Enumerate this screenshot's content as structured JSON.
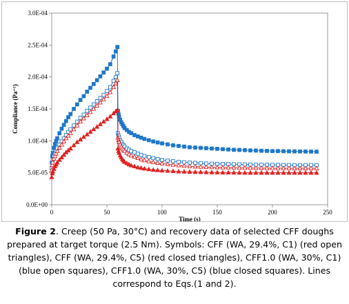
{
  "chart_data": {
    "type": "scatter",
    "title": "",
    "xlabel": "Time (s)",
    "ylabel": "Compliance (Pa⁻¹)",
    "xlim": [
      0,
      250
    ],
    "ylim": [
      0,
      0.0003
    ],
    "x_ticks": [
      0,
      50,
      100,
      150,
      200,
      250
    ],
    "x_tick_labels": [
      "0",
      "50",
      "100",
      "150",
      "200",
      "250"
    ],
    "y_ticks": [
      0,
      5e-05,
      0.0001,
      0.00015,
      0.0002,
      0.00025,
      0.0003
    ],
    "y_tick_labels": [
      "0.0E+00",
      "5.0E-05",
      "1.0E-04",
      "1.5E-04",
      "2.0E-04",
      "2.5E-04",
      "3.0E-04"
    ],
    "grid": false,
    "legend": "none",
    "series": [
      {
        "color": "#1f77c8",
        "marker": "square-closed",
        "x": [
          0,
          0.5,
          1,
          2,
          3,
          4,
          5,
          7,
          9,
          11,
          13,
          15,
          17,
          20,
          23,
          26,
          29,
          32,
          35,
          38,
          41,
          44,
          47,
          50,
          53,
          56,
          58,
          59.5,
          60,
          60.5,
          61,
          62,
          63,
          64,
          65,
          66,
          68,
          70,
          72,
          75,
          78,
          81,
          84,
          88,
          92,
          96,
          100,
          105,
          110,
          115,
          120,
          125,
          130,
          135,
          140,
          145,
          150,
          155,
          160,
          165,
          170,
          175,
          180,
          185,
          190,
          195,
          200,
          205,
          210,
          215,
          220,
          225,
          230,
          235,
          240
        ],
        "y": [
          6.6e-05,
          7.6e-05,
          8.1e-05,
          8.9e-05,
          9.5e-05,
          0.0001,
          0.000104,
          0.000112,
          0.000119,
          0.000125,
          0.000131,
          0.000137,
          0.000142,
          0.00015,
          0.000157,
          0.000164,
          0.00017,
          0.000177,
          0.000183,
          0.000189,
          0.000195,
          0.000201,
          0.000207,
          0.000213,
          0.00022,
          0.000232,
          0.00024,
          0.000247,
          0.000147,
          0.000142,
          0.000138,
          0.000133,
          0.000129,
          0.000126,
          0.000123,
          0.00012,
          0.000117,
          0.000114,
          0.000112,
          0.000109,
          0.000107,
          0.000105,
          0.000103,
          0.000101,
          9.9e-05,
          9.75e-05,
          9.6e-05,
          9.45e-05,
          9.3e-05,
          9.2e-05,
          9.1e-05,
          9e-05,
          8.95e-05,
          8.9e-05,
          8.85e-05,
          8.8e-05,
          8.75e-05,
          8.7e-05,
          8.65e-05,
          8.6e-05,
          8.58e-05,
          8.55e-05,
          8.5e-05,
          8.48e-05,
          8.45e-05,
          8.43e-05,
          8.4e-05,
          8.4e-05,
          8.38e-05,
          8.36e-05,
          8.35e-05,
          8.34e-05,
          8.33e-05,
          8.32e-05,
          8.3e-05
        ]
      },
      {
        "color": "#1f77c8",
        "marker": "square-open",
        "x": [
          0,
          0.5,
          1,
          2,
          3,
          4,
          5,
          7,
          9,
          11,
          13,
          15,
          17,
          20,
          23,
          26,
          29,
          32,
          35,
          38,
          41,
          44,
          47,
          50,
          53,
          56,
          58,
          59.5,
          60,
          60.5,
          61,
          62,
          63,
          64,
          65,
          66,
          68,
          70,
          72,
          75,
          78,
          81,
          84,
          88,
          92,
          96,
          100,
          105,
          110,
          115,
          120,
          125,
          130,
          135,
          140,
          145,
          150,
          155,
          160,
          165,
          170,
          175,
          180,
          185,
          190,
          195,
          200,
          205,
          210,
          215,
          220,
          225,
          230,
          235,
          240
        ],
        "y": [
          5.8e-05,
          6.6e-05,
          7e-05,
          7.6e-05,
          8e-05,
          8.4e-05,
          8.8e-05,
          9.4e-05,
          9.9e-05,
          0.000104,
          0.000109,
          0.000114,
          0.000118,
          0.000124,
          0.00013,
          0.000136,
          0.000141,
          0.000147,
          0.000152,
          0.000157,
          0.000162,
          0.000167,
          0.000172,
          0.000178,
          0.000184,
          0.000194,
          0.0002,
          0.000206,
          0.000112,
          0.000108,
          0.000105,
          0.000101,
          9.8e-05,
          9.5e-05,
          9.3e-05,
          9.1e-05,
          8.8e-05,
          8.6e-05,
          8.4e-05,
          8.2e-05,
          8e-05,
          7.8e-05,
          7.6e-05,
          7.45e-05,
          7.3e-05,
          7.15e-05,
          7e-05,
          6.9e-05,
          6.8e-05,
          6.7e-05,
          6.65e-05,
          6.6e-05,
          6.55e-05,
          6.5e-05,
          6.45e-05,
          6.42e-05,
          6.4e-05,
          6.38e-05,
          6.36e-05,
          6.34e-05,
          6.32e-05,
          6.3e-05,
          6.28e-05,
          6.27e-05,
          6.26e-05,
          6.25e-05,
          6.24e-05,
          6.23e-05,
          6.22e-05,
          6.21e-05,
          6.2e-05,
          6.2e-05,
          6.2e-05,
          6.2e-05,
          6.2e-05
        ]
      },
      {
        "color": "#e02020",
        "marker": "triangle-open",
        "x": [
          0,
          0.5,
          1,
          2,
          3,
          4,
          5,
          7,
          9,
          11,
          13,
          15,
          17,
          20,
          23,
          26,
          29,
          32,
          35,
          38,
          41,
          44,
          47,
          50,
          53,
          56,
          58,
          59.5,
          60,
          60.5,
          61,
          62,
          63,
          64,
          65,
          66,
          68,
          70,
          72,
          75,
          78,
          81,
          84,
          88,
          92,
          96,
          100,
          105,
          110,
          115,
          120,
          125,
          130,
          135,
          140,
          145,
          150,
          155,
          160,
          165,
          170,
          175,
          180,
          185,
          190,
          195,
          200,
          205,
          210,
          215,
          220,
          225,
          230,
          235,
          240
        ],
        "y": [
          5.4e-05,
          6.2e-05,
          6.6e-05,
          7.2e-05,
          7.6e-05,
          8e-05,
          8.4e-05,
          8.9e-05,
          9.4e-05,
          9.9e-05,
          0.000104,
          0.000108,
          0.000112,
          0.000118,
          0.000124,
          0.00013,
          0.000135,
          0.00014,
          0.000145,
          0.00015,
          0.000155,
          0.00016,
          0.000165,
          0.00017,
          0.000176,
          0.000184,
          0.00019,
          0.000195,
          0.000105,
          0.000101,
          9.8e-05,
          9.4e-05,
          9.1e-05,
          8.8e-05,
          8.6e-05,
          8.4e-05,
          8.1e-05,
          7.9e-05,
          7.7e-05,
          7.5e-05,
          7.3e-05,
          7.1e-05,
          6.95e-05,
          6.8e-05,
          6.65e-05,
          6.55e-05,
          6.45e-05,
          6.35e-05,
          6.25e-05,
          6.15e-05,
          6.08e-05,
          6.02e-05,
          5.97e-05,
          5.93e-05,
          5.9e-05,
          5.87e-05,
          5.85e-05,
          5.83e-05,
          5.81e-05,
          5.8e-05,
          5.78e-05,
          5.77e-05,
          5.76e-05,
          5.75e-05,
          5.74e-05,
          5.73e-05,
          5.72e-05,
          5.72e-05,
          5.71e-05,
          5.71e-05,
          5.7e-05,
          5.7e-05,
          5.7e-05,
          5.7e-05,
          5.7e-05
        ]
      },
      {
        "color": "#e02020",
        "marker": "triangle-closed",
        "x": [
          0,
          0.5,
          1,
          2,
          3,
          4,
          5,
          7,
          9,
          11,
          13,
          15,
          17,
          20,
          23,
          26,
          29,
          32,
          35,
          38,
          41,
          44,
          47,
          50,
          53,
          56,
          58,
          59.5,
          60,
          60.5,
          61,
          62,
          63,
          64,
          65,
          66,
          68,
          70,
          72,
          75,
          78,
          81,
          84,
          88,
          92,
          96,
          100,
          105,
          110,
          115,
          120,
          125,
          130,
          135,
          140,
          145,
          150,
          155,
          160,
          165,
          170,
          175,
          180,
          185,
          190,
          195,
          200,
          205,
          210,
          215,
          220,
          225,
          230,
          235,
          240
        ],
        "y": [
          4.3e-05,
          4.9e-05,
          5.2e-05,
          5.6e-05,
          6e-05,
          6.3e-05,
          6.6e-05,
          7e-05,
          7.4e-05,
          7.8e-05,
          8.2e-05,
          8.5e-05,
          8.8e-05,
          9.3e-05,
          9.8e-05,
          0.000102,
          0.000106,
          0.00011,
          0.000114,
          0.000118,
          0.000122,
          0.000126,
          0.00013,
          0.000134,
          0.000138,
          0.000143,
          0.000146,
          0.000148,
          8.8e-05,
          8.4e-05,
          8.1e-05,
          7.7e-05,
          7.4e-05,
          7.1e-05,
          6.9e-05,
          6.7e-05,
          6.5e-05,
          6.3e-05,
          6.15e-05,
          6e-05,
          5.85e-05,
          5.75e-05,
          5.65e-05,
          5.55e-05,
          5.45e-05,
          5.4e-05,
          5.35e-05,
          5.3e-05,
          5.25e-05,
          5.2e-05,
          5.17e-05,
          5.14e-05,
          5.12e-05,
          5.1e-05,
          5.08e-05,
          5.06e-05,
          5.05e-05,
          5.04e-05,
          5.03e-05,
          5.02e-05,
          5.01e-05,
          5e-05,
          5e-05,
          5e-05,
          5e-05,
          5e-05,
          5e-05,
          5e-05,
          5e-05,
          5e-05,
          5e-05,
          5e-05,
          5e-05,
          5e-05,
          5e-05
        ]
      }
    ]
  },
  "caption": {
    "label": "Figure 2",
    "text": ". Creep (50 Pa, 30°C) and recovery data of selected CFF doughs prepared at target torque (2.5 Nm). Symbols: CFF (WA, 29.4%, C1) (red open triangles), CFF (WA, 29.4%, C5) (red closed triangles), CFF1.0 (WA, 30%, C1) (blue open squares), CFF1.0 (WA, 30%, C5) (blue closed squares). Lines correspond to Eqs.(1 and 2)."
  }
}
